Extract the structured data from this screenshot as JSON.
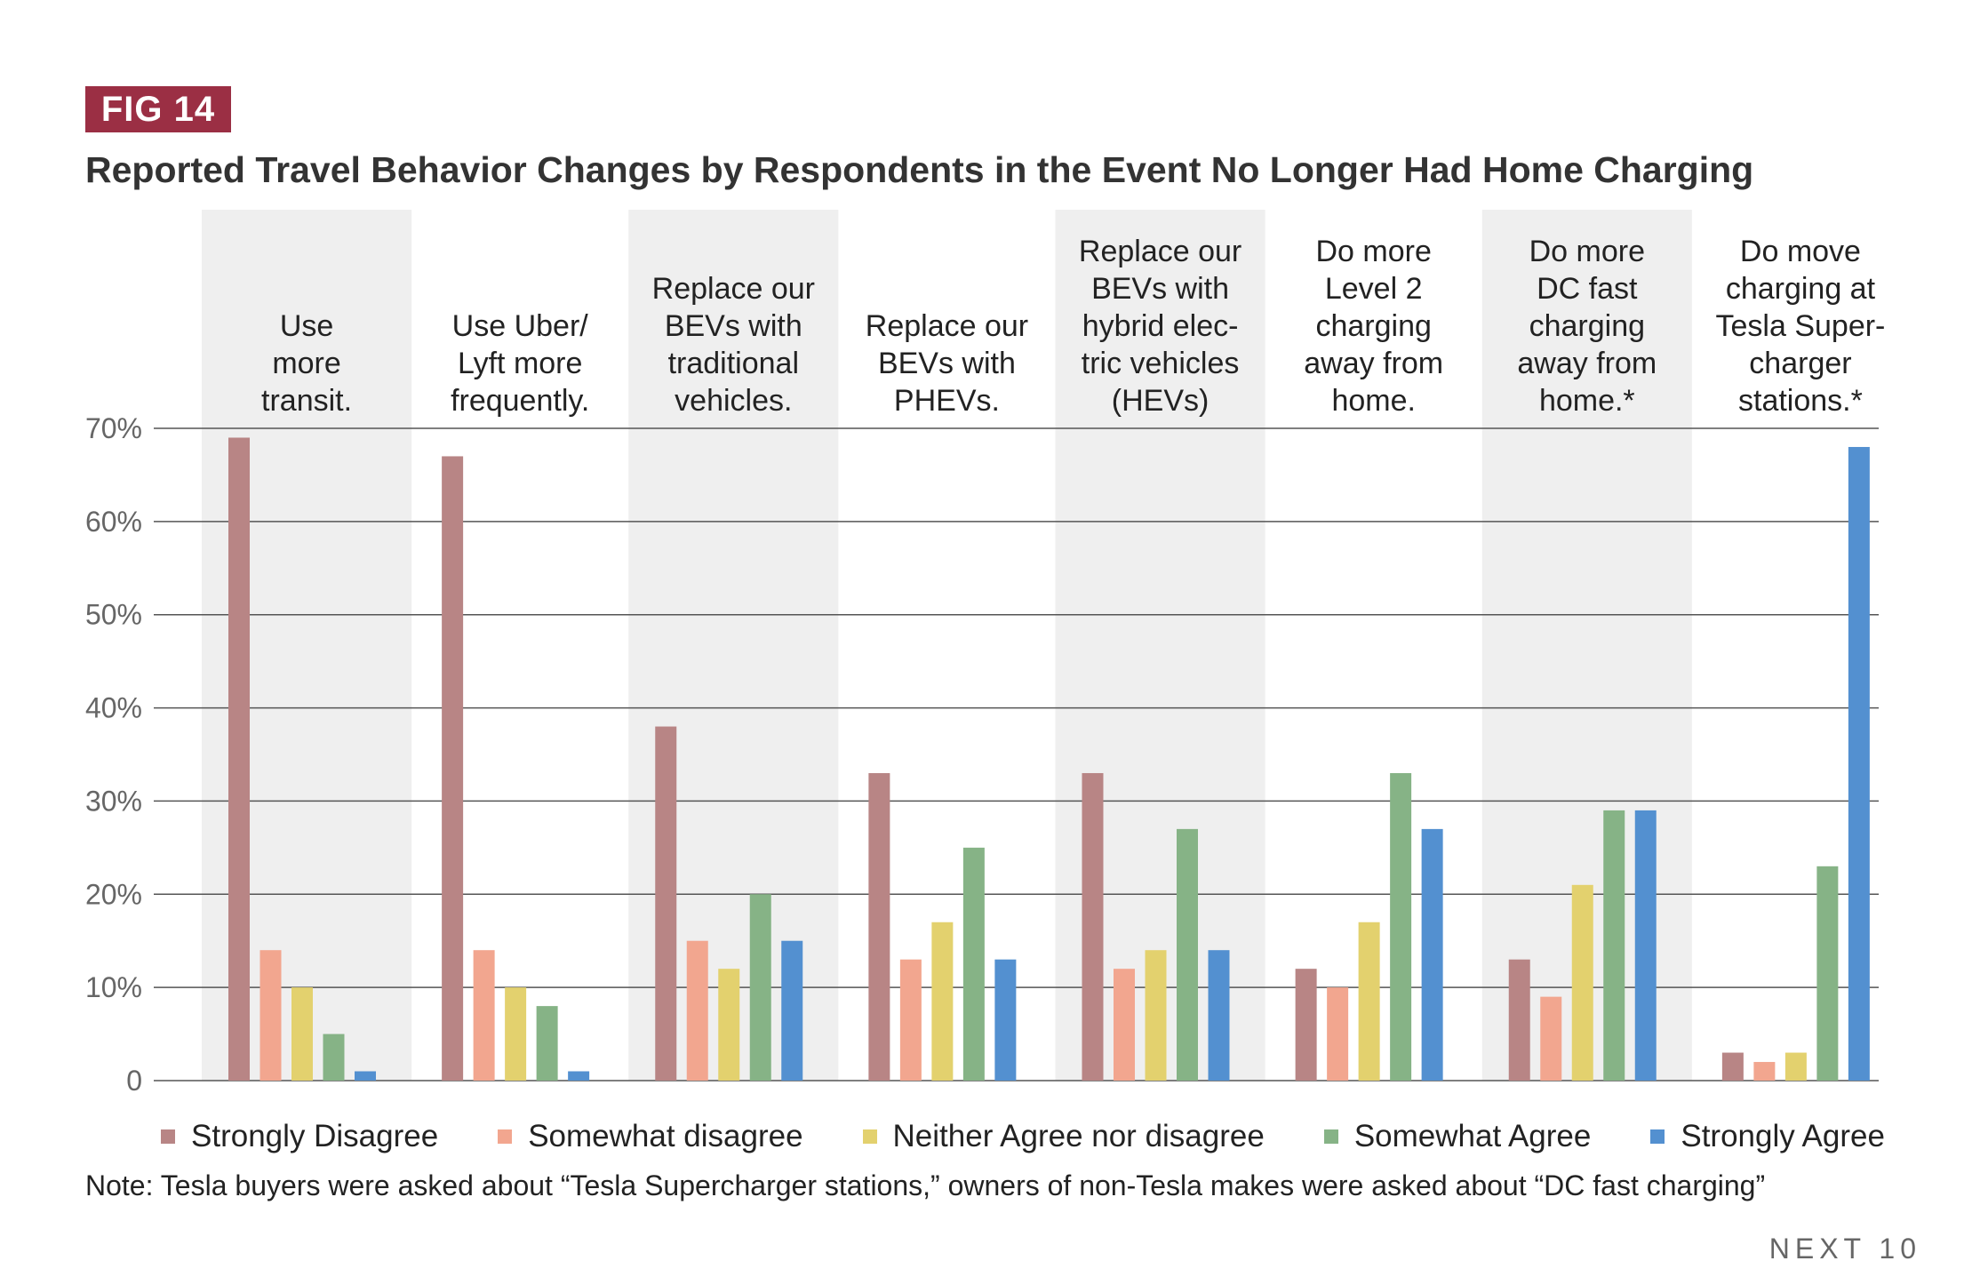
{
  "badge": "FIG 14",
  "title": "Reported Travel Behavior Changes by Respondents in the Event No Longer Had Home Charging",
  "note": "Note: Tesla buyers were asked about “Tesla Supercharger stations,” owners of non-Tesla makes were asked about “DC fast charging”",
  "footer": "NEXT 10",
  "chart_data": {
    "type": "bar",
    "title": "Reported Travel Behavior Changes by Respondents in the Event No Longer Had Home Charging",
    "xlabel": "",
    "ylabel": "",
    "ylim": [
      0,
      70
    ],
    "yticks": [
      0,
      10,
      20,
      30,
      40,
      50,
      60,
      70
    ],
    "ytick_labels": [
      "0",
      "10%",
      "20%",
      "30%",
      "40%",
      "50%",
      "60%",
      "70%"
    ],
    "grid": true,
    "legend_position": "bottom",
    "categories": [
      [
        "Use",
        "more",
        "transit."
      ],
      [
        "Use Uber/",
        "Lyft more",
        "frequently."
      ],
      [
        "Replace our",
        "BEVs with",
        "traditional",
        "vehicles."
      ],
      [
        "Replace our",
        "BEVs with",
        "PHEVs."
      ],
      [
        "Replace our",
        "BEVs with",
        "hybrid elec-",
        "tric vehicles",
        "(HEVs)"
      ],
      [
        "Do more",
        "Level 2",
        "charging",
        "away from",
        "home."
      ],
      [
        "Do more",
        "DC fast",
        "charging",
        "away from",
        "home.*"
      ],
      [
        "Do move",
        "charging at",
        "Tesla Super-",
        "charger",
        "stations.*"
      ]
    ],
    "series": [
      {
        "name": "Strongly Disagree",
        "color": "#b88585",
        "values": [
          69,
          67,
          38,
          33,
          33,
          12,
          13,
          3
        ]
      },
      {
        "name": "Somewhat disagree",
        "color": "#f2a68f",
        "values": [
          14,
          14,
          15,
          13,
          12,
          10,
          9,
          2
        ]
      },
      {
        "name": "Neither Agree nor disagree",
        "color": "#e3d16e",
        "values": [
          10,
          10,
          12,
          17,
          14,
          17,
          21,
          3
        ]
      },
      {
        "name": "Somewhat Agree",
        "color": "#86b386",
        "values": [
          5,
          8,
          20,
          25,
          27,
          33,
          29,
          23
        ]
      },
      {
        "name": "Strongly Agree",
        "color": "#5390d0",
        "values": [
          1,
          1,
          15,
          13,
          14,
          27,
          29,
          68
        ]
      }
    ]
  }
}
